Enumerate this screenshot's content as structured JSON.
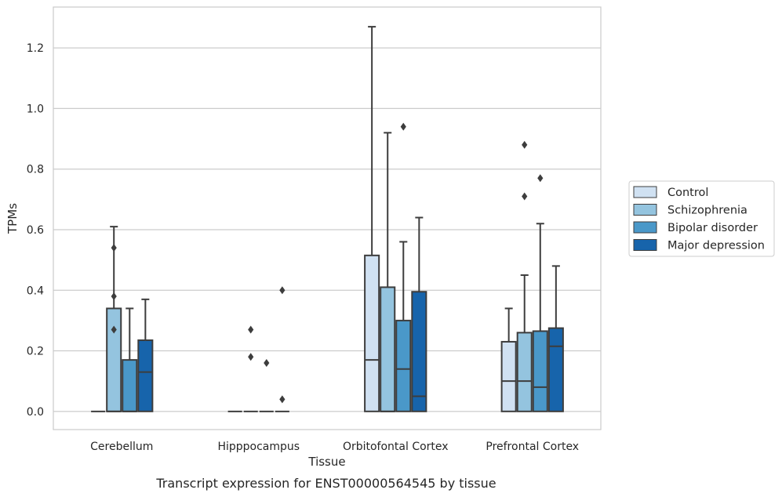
{
  "caption": "Transcript expression for ENST00000564545 by tissue",
  "chart_data": {
    "type": "box",
    "xlabel": "Tissue",
    "ylabel": "TPMs",
    "ylim": [
      -0.06,
      1.335
    ],
    "yticks": [
      "0.0",
      "0.2",
      "0.4",
      "0.6",
      "0.8",
      "1.0",
      "1.2"
    ],
    "grid": "horizontal",
    "legend_position": "right",
    "categories": [
      "Cerebellum",
      "Hipppocampus",
      "Orbitofontal Cortex",
      "Prefrontal Cortex"
    ],
    "series": [
      {
        "name": "Control",
        "color": "#d0e1f2",
        "boxes": [
          {
            "q1": 0,
            "median": 0,
            "q3": 0,
            "whisker_low": 0,
            "whisker_high": 0,
            "outliers": []
          },
          {
            "q1": 0,
            "median": 0,
            "q3": 0,
            "whisker_low": 0,
            "whisker_high": 0,
            "outliers": []
          },
          {
            "q1": 0,
            "median": 0.17,
            "q3": 0.515,
            "whisker_low": 0,
            "whisker_high": 1.27,
            "outliers": []
          },
          {
            "q1": 0,
            "median": 0.1,
            "q3": 0.23,
            "whisker_low": 0,
            "whisker_high": 0.34,
            "outliers": []
          }
        ]
      },
      {
        "name": "Schizophrenia",
        "color": "#94c4df",
        "boxes": [
          {
            "q1": 0,
            "median": 0,
            "q3": 0.34,
            "whisker_low": 0,
            "whisker_high": 0.61,
            "outliers": [
              0.27,
              0.38,
              0.54
            ]
          },
          {
            "q1": 0,
            "median": 0,
            "q3": 0,
            "whisker_low": 0,
            "whisker_high": 0,
            "outliers": [
              0.18,
              0.27
            ]
          },
          {
            "q1": 0,
            "median": 0,
            "q3": 0.41,
            "whisker_low": 0,
            "whisker_high": 0.92,
            "outliers": []
          },
          {
            "q1": 0,
            "median": 0.1,
            "q3": 0.26,
            "whisker_low": 0,
            "whisker_high": 0.45,
            "outliers": [
              0.71,
              0.88
            ]
          }
        ]
      },
      {
        "name": "Bipolar disorder",
        "color": "#4a98c9",
        "boxes": [
          {
            "q1": 0,
            "median": 0,
            "q3": 0.17,
            "whisker_low": 0,
            "whisker_high": 0.34,
            "outliers": []
          },
          {
            "q1": 0,
            "median": 0,
            "q3": 0,
            "whisker_low": 0,
            "whisker_high": 0,
            "outliers": [
              0.16
            ]
          },
          {
            "q1": 0,
            "median": 0.14,
            "q3": 0.3,
            "whisker_low": 0,
            "whisker_high": 0.56,
            "outliers": [
              0.94
            ]
          },
          {
            "q1": 0,
            "median": 0.08,
            "q3": 0.265,
            "whisker_low": 0,
            "whisker_high": 0.62,
            "outliers": [
              0.77
            ]
          }
        ]
      },
      {
        "name": "Major depression",
        "color": "#1764ab",
        "boxes": [
          {
            "q1": 0,
            "median": 0.13,
            "q3": 0.235,
            "whisker_low": 0,
            "whisker_high": 0.37,
            "outliers": []
          },
          {
            "q1": 0,
            "median": 0,
            "q3": 0,
            "whisker_low": 0,
            "whisker_high": 0,
            "outliers": [
              0.04,
              0.4
            ]
          },
          {
            "q1": 0,
            "median": 0.05,
            "q3": 0.395,
            "whisker_low": 0,
            "whisker_high": 0.64,
            "outliers": []
          },
          {
            "q1": 0,
            "median": 0.215,
            "q3": 0.275,
            "whisker_low": 0,
            "whisker_high": 0.48,
            "outliers": []
          }
        ]
      }
    ]
  }
}
